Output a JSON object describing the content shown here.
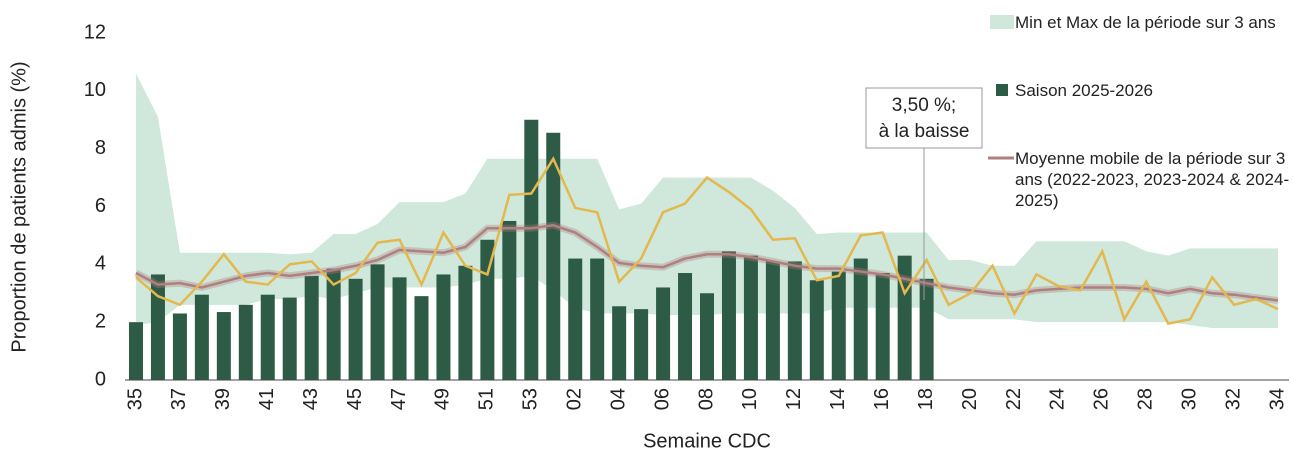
{
  "chart_data": {
    "type": "bar",
    "y_axis_label": "Proportion de patients admis (%)",
    "x_axis_label": "Semaine CDC",
    "categories": [
      "35",
      null,
      "37",
      null,
      "39",
      null,
      "41",
      null,
      "43",
      null,
      "45",
      null,
      "47",
      null,
      "49",
      null,
      "51",
      null,
      "53",
      null,
      "02",
      null,
      "04",
      null,
      "06",
      null,
      "08",
      null,
      "10",
      null,
      "12",
      null,
      "14",
      null,
      "16",
      null,
      "18",
      null,
      "20",
      null,
      "22",
      null,
      "24",
      null,
      "26",
      null,
      "28",
      null,
      "30",
      null,
      "32",
      null,
      "34"
    ],
    "ylim": [
      0,
      12
    ],
    "yticks": [
      0,
      2,
      4,
      6,
      8,
      10,
      12
    ],
    "annotation": [
      "3,50 %;",
      "à la baisse"
    ],
    "series": [
      {
        "name": "Min et Max de la période sur 3 ans",
        "type": "range",
        "color": "#cfe8db",
        "high": [
          10.6,
          9.1,
          4.4,
          4.4,
          4.4,
          4.4,
          4.4,
          4.35,
          4.4,
          5.05,
          5.05,
          5.4,
          6.15,
          6.15,
          6.15,
          6.45,
          7.65,
          7.65,
          7.65,
          7.65,
          7.65,
          7.65,
          5.9,
          6.1,
          7.0,
          7.0,
          7.0,
          7.0,
          7.0,
          6.55,
          5.95,
          5.05,
          5.1,
          5.1,
          5.1,
          5.1,
          5.1,
          4.15,
          4.15,
          3.95,
          3.95,
          4.8,
          4.8,
          4.8,
          4.8,
          4.8,
          4.45,
          4.3,
          4.55,
          4.55,
          4.55,
          4.55,
          4.55
        ],
        "low": [
          1.9,
          2.0,
          2.6,
          2.6,
          2.6,
          2.6,
          2.8,
          2.8,
          2.9,
          2.8,
          3.0,
          3.2,
          3.2,
          3.2,
          3.2,
          3.3,
          3.5,
          3.5,
          3.6,
          3.1,
          2.5,
          2.3,
          2.3,
          2.3,
          2.25,
          2.25,
          2.25,
          2.3,
          2.3,
          2.3,
          2.3,
          2.3,
          2.5,
          2.5,
          2.5,
          2.5,
          2.5,
          2.1,
          2.1,
          2.1,
          2.1,
          2.0,
          2.0,
          2.0,
          2.0,
          2.0,
          2.0,
          2.0,
          1.9,
          1.8,
          1.8,
          1.8,
          1.8
        ]
      },
      {
        "name": "Saison 2025-2026",
        "type": "bar",
        "color": "#2e5b45",
        "values": [
          2.0,
          3.65,
          2.3,
          2.95,
          2.35,
          2.6,
          2.95,
          2.85,
          3.6,
          3.85,
          3.5,
          4.0,
          3.55,
          2.9,
          3.65,
          3.95,
          4.85,
          5.5,
          9.0,
          8.55,
          4.2,
          4.2,
          2.55,
          2.45,
          3.2,
          3.7,
          3.0,
          4.45,
          4.3,
          4.1,
          4.1,
          3.45,
          3.75,
          4.2,
          3.7,
          4.3,
          3.5,
          null,
          null,
          null,
          null,
          null,
          null,
          null,
          null,
          null,
          null,
          null,
          null,
          null,
          null,
          null,
          null
        ]
      },
      {
        "name": "Moyenne mobile de la période sur 3 ans (2022-2023, 2023-2024 & 2024-2025)",
        "type": "line",
        "color": "#b07f7f",
        "values": [
          3.7,
          3.3,
          3.35,
          3.2,
          3.4,
          3.6,
          3.7,
          3.6,
          3.7,
          3.8,
          3.95,
          4.15,
          4.5,
          4.45,
          4.4,
          4.6,
          5.25,
          5.25,
          5.25,
          5.35,
          5.1,
          4.6,
          4.05,
          3.95,
          3.9,
          4.2,
          4.35,
          4.35,
          4.25,
          4.1,
          3.95,
          3.85,
          3.85,
          3.75,
          3.65,
          3.5,
          3.35,
          3.2,
          3.1,
          3.0,
          2.95,
          3.1,
          3.15,
          3.2,
          3.2,
          3.2,
          3.15,
          3.0,
          3.15,
          3.0,
          2.95,
          2.85,
          2.75
        ]
      },
      {
        "type": "line",
        "color": "#e3b84e",
        "values": [
          3.55,
          2.9,
          2.6,
          3.4,
          4.35,
          3.4,
          3.3,
          4.0,
          4.1,
          3.3,
          3.7,
          4.75,
          4.85,
          3.3,
          5.1,
          3.95,
          3.65,
          6.4,
          6.45,
          7.65,
          5.95,
          5.8,
          3.4,
          4.2,
          5.8,
          6.1,
          7.0,
          6.5,
          5.9,
          4.85,
          4.9,
          3.45,
          3.6,
          5.0,
          5.1,
          3.0,
          4.15,
          2.6,
          3.0,
          3.95,
          2.3,
          3.65,
          3.25,
          3.1,
          4.45,
          2.1,
          3.4,
          1.95,
          2.1,
          3.55,
          2.6,
          2.8,
          2.45
        ]
      }
    ]
  }
}
